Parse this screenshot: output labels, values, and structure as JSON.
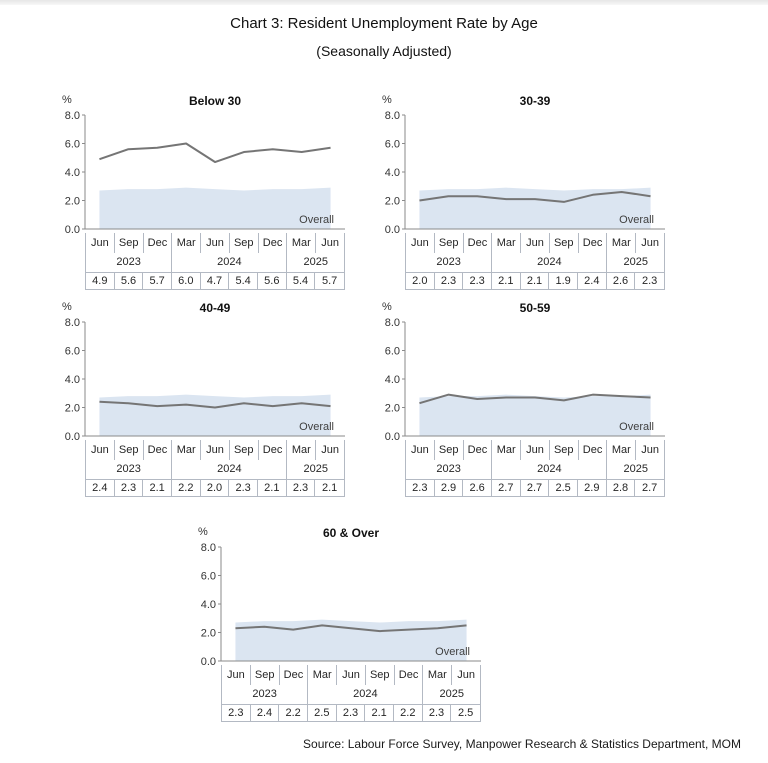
{
  "page": {
    "title": "Chart 3: Resident Unemployment Rate by Age",
    "subtitle": "(Seasonally Adjusted)",
    "source": "Source: Labour Force Survey, Manpower Research & Statistics Department, MOM"
  },
  "chart_data": {
    "type": "line",
    "unit_label": "%",
    "ylim": [
      0,
      8
    ],
    "ytick_labels": [
      "8.0",
      "6.0",
      "4.0",
      "2.0",
      "0.0"
    ],
    "grid": "off",
    "legend_position": "in-plot label on shaded band",
    "categories_months": [
      "Jun",
      "Sep",
      "Dec",
      "Mar",
      "Jun",
      "Sep",
      "Dec",
      "Mar",
      "Jun"
    ],
    "year_groups": [
      {
        "label": "2023",
        "span": 3
      },
      {
        "label": "2024",
        "span": 4
      },
      {
        "label": "2025",
        "span": 2
      }
    ],
    "overall_label": "Overall",
    "overall_band_estimated": [
      2.7,
      2.8,
      2.8,
      2.9,
      2.8,
      2.7,
      2.8,
      2.8,
      2.9
    ],
    "band_color": "#dbe5f1",
    "line_color": "#757575",
    "axis_color": "#8a8a8a",
    "charts": [
      {
        "id": "below-30",
        "title": "Below 30",
        "values": [
          4.9,
          5.6,
          5.7,
          6.0,
          4.7,
          5.4,
          5.6,
          5.4,
          5.7
        ]
      },
      {
        "id": "30-39",
        "title": "30-39",
        "values": [
          2.0,
          2.3,
          2.3,
          2.1,
          2.1,
          1.9,
          2.4,
          2.6,
          2.3
        ]
      },
      {
        "id": "40-49",
        "title": "40-49",
        "values": [
          2.4,
          2.3,
          2.1,
          2.2,
          2.0,
          2.3,
          2.1,
          2.3,
          2.1
        ]
      },
      {
        "id": "50-59",
        "title": "50-59",
        "values": [
          2.3,
          2.9,
          2.6,
          2.7,
          2.7,
          2.5,
          2.9,
          2.8,
          2.7
        ]
      },
      {
        "id": "60-over",
        "title": "60 & Over",
        "values": [
          2.3,
          2.4,
          2.2,
          2.5,
          2.3,
          2.1,
          2.2,
          2.3,
          2.5
        ]
      }
    ]
  }
}
